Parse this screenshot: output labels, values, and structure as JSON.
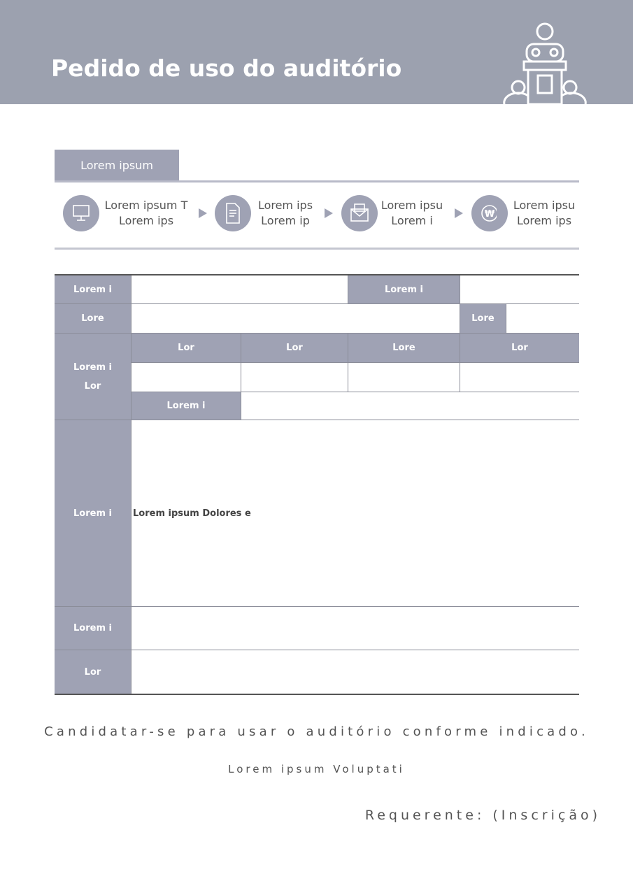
{
  "header": {
    "title": "Pedido de uso do auditório"
  },
  "process": {
    "tab": "Lorem ipsum",
    "steps": [
      {
        "line1": "Lorem ipsum T",
        "line2": "Lorem ips"
      },
      {
        "line1": "Lorem ips",
        "line2": "Lorem ip"
      },
      {
        "line1": "Lorem ipsu",
        "line2": "Lorem i"
      },
      {
        "line1": "Lorem ipsu",
        "line2": "Lorem ips"
      }
    ]
  },
  "table": {
    "row1": {
      "label": "Lorem i",
      "label2": "Lorem i"
    },
    "row2": {
      "label": "Lore",
      "label2": "Lore"
    },
    "row3": {
      "label": [
        "Lorem i",
        "Lor"
      ],
      "columns": [
        "Lor",
        "Lor",
        "Lore",
        "Lor"
      ],
      "sub_label": "Lorem i"
    },
    "row4": {
      "label": "Lorem i",
      "content": "Lorem ipsum Dolores e"
    },
    "row5": {
      "label": "Lorem i"
    },
    "row6": {
      "label": "Lor"
    }
  },
  "footer": {
    "statement": "Candidatar-se para usar o auditório conforme indicado.",
    "note": "Lorem ipsum Voluptati",
    "signature": "Requerente: (Inscrição)"
  }
}
